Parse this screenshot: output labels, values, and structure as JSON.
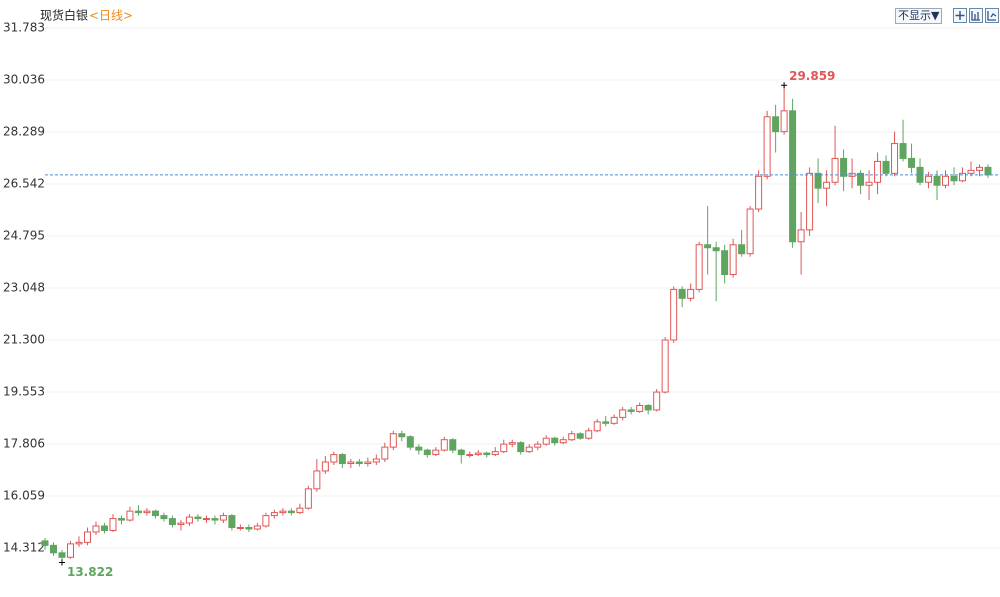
{
  "chart_data": {
    "type": "candlestick",
    "title": "现货白银",
    "subtitle": "<日线>",
    "controls": {
      "hide_button": "不显示▼"
    },
    "up_color": "#e05656",
    "down_color": "#5fa55f",
    "grid": true,
    "ylim": [
      12.9,
      31.783
    ],
    "yticks": [
      31.783,
      30.036,
      28.289,
      26.542,
      24.795,
      23.048,
      {
        "value": 21.3,
        "label": "21.300"
      },
      19.553,
      17.806,
      16.059,
      14.312
    ],
    "ohlc": [
      [
        14.55,
        14.65,
        14.25,
        14.4
      ],
      [
        14.4,
        14.5,
        14.05,
        14.15
      ],
      [
        14.15,
        14.25,
        13.822,
        14.0
      ],
      [
        14.0,
        14.55,
        13.95,
        14.45
      ],
      [
        14.45,
        14.7,
        14.35,
        14.5
      ],
      [
        14.5,
        15.0,
        14.4,
        14.85
      ],
      [
        14.85,
        15.2,
        14.75,
        15.05
      ],
      [
        15.05,
        15.15,
        14.8,
        14.9
      ],
      [
        14.9,
        15.45,
        14.85,
        15.3
      ],
      [
        15.3,
        15.4,
        15.1,
        15.25
      ],
      [
        15.25,
        15.7,
        15.2,
        15.55
      ],
      [
        15.55,
        15.75,
        15.4,
        15.5
      ],
      [
        15.5,
        15.65,
        15.4,
        15.55
      ],
      [
        15.55,
        15.6,
        15.3,
        15.4
      ],
      [
        15.4,
        15.5,
        15.2,
        15.3
      ],
      [
        15.3,
        15.4,
        15.0,
        15.1
      ],
      [
        15.1,
        15.25,
        14.9,
        15.15
      ],
      [
        15.15,
        15.45,
        15.05,
        15.35
      ],
      [
        15.35,
        15.45,
        15.2,
        15.3
      ],
      [
        15.3,
        15.4,
        15.15,
        15.3
      ],
      [
        15.3,
        15.4,
        15.1,
        15.25
      ],
      [
        15.25,
        15.5,
        15.15,
        15.4
      ],
      [
        15.4,
        15.45,
        14.9,
        15.0
      ],
      [
        15.0,
        15.1,
        14.9,
        15.0
      ],
      [
        15.0,
        15.1,
        14.85,
        14.95
      ],
      [
        14.95,
        15.15,
        14.9,
        15.05
      ],
      [
        15.05,
        15.5,
        15.0,
        15.4
      ],
      [
        15.4,
        15.6,
        15.3,
        15.5
      ],
      [
        15.5,
        15.65,
        15.4,
        15.55
      ],
      [
        15.55,
        15.65,
        15.4,
        15.5
      ],
      [
        15.5,
        15.8,
        15.45,
        15.65
      ],
      [
        15.65,
        16.4,
        15.6,
        16.3
      ],
      [
        16.3,
        17.3,
        16.2,
        16.9
      ],
      [
        16.9,
        17.4,
        16.8,
        17.2
      ],
      [
        17.2,
        17.55,
        17.1,
        17.45
      ],
      [
        17.45,
        17.5,
        17.0,
        17.15
      ],
      [
        17.15,
        17.3,
        17.0,
        17.2
      ],
      [
        17.2,
        17.3,
        17.05,
        17.15
      ],
      [
        17.15,
        17.35,
        17.05,
        17.2
      ],
      [
        17.2,
        17.45,
        17.1,
        17.3
      ],
      [
        17.3,
        17.85,
        17.2,
        17.7
      ],
      [
        17.7,
        18.25,
        17.6,
        18.15
      ],
      [
        18.15,
        18.25,
        17.9,
        18.05
      ],
      [
        18.05,
        18.1,
        17.6,
        17.7
      ],
      [
        17.7,
        17.8,
        17.45,
        17.6
      ],
      [
        17.6,
        17.65,
        17.35,
        17.45
      ],
      [
        17.45,
        17.7,
        17.4,
        17.6
      ],
      [
        17.6,
        18.05,
        17.55,
        17.95
      ],
      [
        17.95,
        18.0,
        17.5,
        17.6
      ],
      [
        17.6,
        17.65,
        17.15,
        17.45
      ],
      [
        17.45,
        17.55,
        17.35,
        17.45
      ],
      [
        17.45,
        17.6,
        17.4,
        17.5
      ],
      [
        17.5,
        17.55,
        17.35,
        17.45
      ],
      [
        17.45,
        17.7,
        17.4,
        17.55
      ],
      [
        17.55,
        17.95,
        17.5,
        17.8
      ],
      [
        17.8,
        17.95,
        17.7,
        17.85
      ],
      [
        17.85,
        17.9,
        17.45,
        17.55
      ],
      [
        17.55,
        17.8,
        17.5,
        17.7
      ],
      [
        17.7,
        17.9,
        17.6,
        17.8
      ],
      [
        17.8,
        18.1,
        17.75,
        18.0
      ],
      [
        18.0,
        18.05,
        17.75,
        17.85
      ],
      [
        17.85,
        18.05,
        17.8,
        17.95
      ],
      [
        17.95,
        18.25,
        17.9,
        18.15
      ],
      [
        18.15,
        18.2,
        17.95,
        18.0
      ],
      [
        18.0,
        18.35,
        17.95,
        18.25
      ],
      [
        18.25,
        18.65,
        18.2,
        18.55
      ],
      [
        18.55,
        18.75,
        18.4,
        18.5
      ],
      [
        18.5,
        18.8,
        18.45,
        18.7
      ],
      [
        18.7,
        19.05,
        18.6,
        18.95
      ],
      [
        18.95,
        19.05,
        18.8,
        18.9
      ],
      [
        18.9,
        19.2,
        18.85,
        19.1
      ],
      [
        19.1,
        19.15,
        18.8,
        18.95
      ],
      [
        18.95,
        19.65,
        18.9,
        19.55
      ],
      [
        19.55,
        21.4,
        19.5,
        21.3
      ],
      [
        21.3,
        23.1,
        21.2,
        23.0
      ],
      [
        23.0,
        23.1,
        22.4,
        22.7
      ],
      [
        22.7,
        23.2,
        22.6,
        23.0
      ],
      [
        23.0,
        24.6,
        22.9,
        24.5
      ],
      [
        24.5,
        25.8,
        23.5,
        24.4
      ],
      [
        24.4,
        24.6,
        22.6,
        24.3
      ],
      [
        24.3,
        24.5,
        23.2,
        23.5
      ],
      [
        23.5,
        24.7,
        23.4,
        24.5
      ],
      [
        24.5,
        25.0,
        24.1,
        24.2
      ],
      [
        24.2,
        25.8,
        24.1,
        25.7
      ],
      [
        25.7,
        27.0,
        25.6,
        26.8
      ],
      [
        26.8,
        29.0,
        26.7,
        28.8
      ],
      [
        28.8,
        29.2,
        27.6,
        28.3
      ],
      [
        28.3,
        29.859,
        28.2,
        29.0
      ],
      [
        29.0,
        29.4,
        24.4,
        24.6
      ],
      [
        24.6,
        25.6,
        23.5,
        25.0
      ],
      [
        25.0,
        27.1,
        24.8,
        26.9
      ],
      [
        26.9,
        27.4,
        25.9,
        26.4
      ],
      [
        26.4,
        27.0,
        25.8,
        26.6
      ],
      [
        26.6,
        28.5,
        26.5,
        27.4
      ],
      [
        27.4,
        27.7,
        26.3,
        26.8
      ],
      [
        26.8,
        27.4,
        26.4,
        26.9
      ],
      [
        26.9,
        27.0,
        26.2,
        26.5
      ],
      [
        26.5,
        27.0,
        26.0,
        26.6
      ],
      [
        26.6,
        27.6,
        26.2,
        27.3
      ],
      [
        27.3,
        27.5,
        26.8,
        26.9
      ],
      [
        26.9,
        28.3,
        26.8,
        27.9
      ],
      [
        27.9,
        28.7,
        27.3,
        27.4
      ],
      [
        27.4,
        27.9,
        26.9,
        27.1
      ],
      [
        27.1,
        27.4,
        26.5,
        26.6
      ],
      [
        26.6,
        26.95,
        26.4,
        26.8
      ],
      [
        26.8,
        27.0,
        26.0,
        26.5
      ],
      [
        26.5,
        27.0,
        26.4,
        26.8
      ],
      [
        26.8,
        27.1,
        26.5,
        26.65
      ],
      [
        26.65,
        27.1,
        26.6,
        26.9
      ],
      [
        26.9,
        27.3,
        26.8,
        27.0
      ],
      [
        27.0,
        27.2,
        26.8,
        27.1
      ],
      [
        27.1,
        27.2,
        26.75,
        26.85
      ]
    ]
  }
}
